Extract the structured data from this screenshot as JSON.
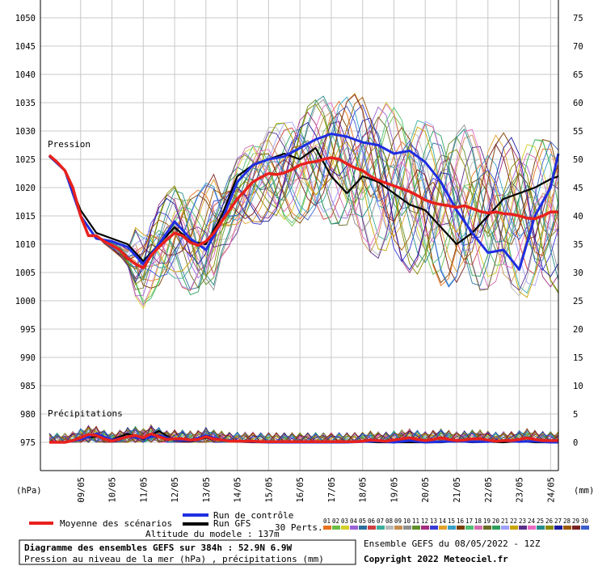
{
  "chart_data": {
    "type": "line",
    "y_left": {
      "unit_label": "(hPa)",
      "range": [
        975,
        1050
      ],
      "ticks": [
        "1050",
        "1045",
        "1040",
        "1035",
        "1030",
        "1025",
        "1020",
        "1015",
        "1010",
        "1005",
        "1000",
        "995",
        "990",
        "985",
        "980",
        "975"
      ]
    },
    "y_right": {
      "unit_label": "(mm)",
      "range": [
        0,
        75
      ],
      "ticks": [
        "75",
        "70",
        "65",
        "60",
        "55",
        "50",
        "45",
        "40",
        "35",
        "30",
        "25",
        "20",
        "15",
        "10",
        "5",
        "0"
      ]
    },
    "x": {
      "start_day": 8,
      "end_day": 24,
      "labels": [
        "09/05",
        "10/05",
        "11/05",
        "12/05",
        "13/05",
        "14/05",
        "15/05",
        "16/05",
        "17/05",
        "18/05",
        "19/05",
        "20/05",
        "21/05",
        "22/05",
        "23/05",
        "24/05"
      ]
    },
    "annotations": {
      "pressure": "Pression",
      "precip": "Précipitations"
    },
    "series": [
      {
        "name": "Moyenne des scénarios",
        "color": "#e8211d",
        "x": [
          8.0,
          8.25,
          8.5,
          8.75,
          9.0,
          9.25,
          9.5,
          9.75,
          10.0,
          10.25,
          10.5,
          10.75,
          11.0,
          11.25,
          11.5,
          11.75,
          12.0,
          12.25,
          12.5,
          12.75,
          13.0,
          13.25,
          13.5,
          13.75,
          14.0,
          14.25,
          14.5,
          14.75,
          15.0,
          15.25,
          15.5,
          15.75,
          16.0,
          16.25,
          16.5,
          16.75,
          17.0,
          17.25,
          17.5,
          17.75,
          18.0,
          18.25,
          18.5,
          18.75,
          19.0,
          19.25,
          19.5,
          19.75,
          20.0,
          20.25,
          20.5,
          20.75,
          21.0,
          21.25,
          21.5,
          21.75,
          22.0,
          22.25,
          22.5,
          22.75,
          23.0,
          23.25,
          23.5,
          23.75,
          24.0,
          24.25
        ],
        "pressure": [
          1025.7,
          1024.5,
          1023,
          1020,
          1015,
          1011.5,
          1011.5,
          1010.5,
          1009.8,
          1009,
          1007.5,
          1006.5,
          1005.8,
          1008,
          1009.5,
          1010.8,
          1012,
          1011.5,
          1010.3,
          1009.8,
          1010.5,
          1012,
          1014,
          1016,
          1018,
          1019.5,
          1021,
          1021.8,
          1022.5,
          1022.3,
          1022.6,
          1023.2,
          1024,
          1024.4,
          1024.6,
          1025,
          1025.3,
          1025,
          1024.2,
          1023.5,
          1023,
          1022,
          1021.3,
          1020.8,
          1020.3,
          1019.8,
          1019.3,
          1018.6,
          1017.8,
          1017.3,
          1017,
          1016.8,
          1016.5,
          1016.8,
          1016.3,
          1015.8,
          1015.5,
          1015.7,
          1015.4,
          1015.3,
          1015,
          1014.6,
          1014.5,
          1015,
          1015.7,
          1015.7
        ],
        "precip": [
          0,
          0,
          0,
          0.3,
          0.8,
          1.4,
          1.2,
          0.6,
          0.2,
          0.6,
          1.0,
          1.2,
          0.8,
          1.5,
          1.0,
          0.5,
          0.6,
          0.6,
          0.4,
          0.5,
          1.0,
          0.6,
          0.4,
          0.2,
          0.2,
          0.2,
          0.2,
          0.1,
          0.1,
          0.1,
          0.1,
          0.1,
          0.1,
          0.1,
          0.1,
          0.1,
          0.1,
          0.1,
          0.1,
          0.1,
          0.2,
          0.4,
          0.3,
          0.2,
          0.4,
          0.6,
          0.8,
          0.5,
          0.3,
          0.5,
          0.8,
          0.5,
          0.3,
          0.4,
          0.6,
          0.6,
          0.4,
          0.2,
          0.3,
          0.3,
          0.5,
          0.8,
          0.5,
          0.3,
          0.3,
          0.3
        ]
      },
      {
        "name": "Run de contrôle",
        "color": "#1f2ee0",
        "x": [
          8.0,
          8.5,
          9.0,
          9.5,
          10.0,
          10.5,
          11.0,
          11.5,
          12.0,
          12.5,
          13.0,
          13.5,
          14.0,
          14.5,
          15.0,
          15.5,
          16.0,
          16.5,
          17.0,
          17.5,
          18.0,
          18.5,
          19.0,
          19.5,
          20.0,
          20.5,
          21.0,
          21.5,
          22.0,
          22.5,
          23.0,
          23.5,
          24.0,
          24.25
        ],
        "pressure": [
          1025.6,
          1023,
          1015,
          1011,
          1010.5,
          1009.5,
          1006.5,
          1010,
          1014,
          1011,
          1009,
          1014,
          1021,
          1024,
          1025,
          1025.5,
          1027,
          1028.5,
          1029.5,
          1029,
          1028,
          1027.5,
          1026,
          1026.5,
          1024.5,
          1021,
          1016,
          1012,
          1008.5,
          1009,
          1005.5,
          1015,
          1020,
          1026
        ],
        "precip": [
          0,
          0,
          0.5,
          1.5,
          0.4,
          1.0,
          0.7,
          1.2,
          0.4,
          0.3,
          1.2,
          0.4,
          0.2,
          0.1,
          0,
          0,
          0,
          0,
          0,
          0,
          0.1,
          0.2,
          0,
          0.3,
          0,
          0.1,
          0.2,
          0.1,
          0.1,
          0.3,
          0.1,
          0.2,
          0,
          0
        ]
      },
      {
        "name": "Run GFS",
        "color": "#000000",
        "x": [
          8.0,
          8.5,
          9.0,
          9.5,
          10.0,
          10.5,
          11.0,
          11.5,
          12.0,
          12.5,
          13.0,
          13.5,
          14.0,
          14.5,
          15.0,
          15.5,
          16.0,
          16.5,
          17.0,
          17.5,
          18.0,
          18.5,
          19.0,
          19.5,
          20.0,
          20.5,
          21.0,
          21.5,
          22.0,
          22.5,
          23.0,
          23.5,
          24.0,
          24.25
        ],
        "pressure": [
          1025.5,
          1023,
          1016,
          1012,
          1011,
          1010,
          1007,
          1010,
          1013,
          1010.5,
          1010,
          1015,
          1022,
          1024,
          1025,
          1026,
          1025,
          1027,
          1022,
          1019,
          1022,
          1021,
          1019,
          1017,
          1016,
          1013,
          1010,
          1012,
          1015,
          1018,
          1019,
          1020,
          1021.5,
          1022
        ],
        "precip": [
          0,
          0,
          0.8,
          1.0,
          0.5,
          1.5,
          0.5,
          2.0,
          0.3,
          0.2,
          0.8,
          0.3,
          0.1,
          0,
          0,
          0,
          0,
          0,
          0,
          0,
          0.1,
          0,
          0,
          0,
          0,
          0,
          0.2,
          0,
          0.1,
          0,
          0.2,
          0,
          0,
          0
        ]
      }
    ],
    "perturbations_label": "30 Perts.",
    "perturbations": [
      "01",
      "02",
      "03",
      "04",
      "05",
      "06",
      "07",
      "08",
      "09",
      "10",
      "11",
      "12",
      "13",
      "14",
      "15",
      "16",
      "17",
      "18",
      "19",
      "20",
      "21",
      "22",
      "23",
      "24",
      "25",
      "26",
      "27",
      "28",
      "29",
      "30"
    ],
    "perturbation_colors": [
      "#e8721c",
      "#6bbd45",
      "#d4cf2a",
      "#9c63d8",
      "#2a6f9e",
      "#cf3f3f",
      "#3cae9c",
      "#b9b9b9",
      "#c78d52",
      "#8f8f8f",
      "#5e8f28",
      "#a32c7d",
      "#3b3bd8",
      "#e0a12b",
      "#36a0c9",
      "#7b3f00",
      "#4dbf73",
      "#d66bb0",
      "#6c6c26",
      "#2b9e5a",
      "#a0a0ff",
      "#c9a400",
      "#5a2e8a",
      "#e86ac1",
      "#238b8b",
      "#8a8a00",
      "#1b1b9e",
      "#9e5a00",
      "#7a1f1f",
      "#3a5fcd"
    ],
    "footer": {
      "altitude": "Altitude du modele : 137m",
      "title": "Diagramme des ensembles GEFS sur 384h : 52.9N 6.9W",
      "subtitle": "Pression au niveau de la mer (hPa) , précipitations (mm)",
      "run_info": "Ensemble GEFS du 08/05/2022 - 12Z",
      "copyright": "Copyright 2022 Meteociel.fr"
    }
  }
}
